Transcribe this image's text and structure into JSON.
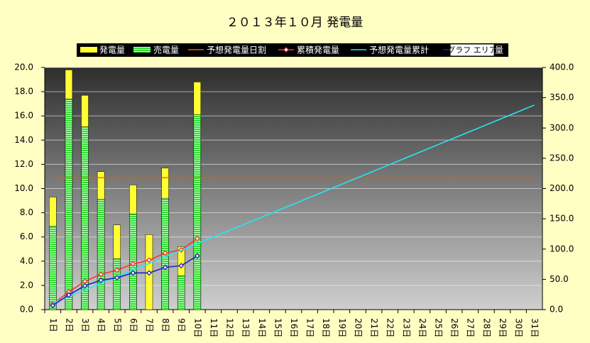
{
  "chart_data": {
    "type": "bar",
    "title": "２０１３年１０月 発電量",
    "categories": [
      "1日",
      "2日",
      "3日",
      "4日",
      "5日",
      "6日",
      "7日",
      "8日",
      "9日",
      "10日",
      "11日",
      "12日",
      "13日",
      "14日",
      "15日",
      "16日",
      "17日",
      "18日",
      "19日",
      "20日",
      "21日",
      "22日",
      "23日",
      "24日",
      "25日",
      "26日",
      "27日",
      "28日",
      "29日",
      "30日",
      "31日"
    ],
    "series": [
      {
        "name": "発電量",
        "type": "bar",
        "color": "#ffff33",
        "values": [
          9.3,
          19.8,
          17.7,
          11.4,
          7.0,
          10.3,
          6.2,
          11.7,
          5.2,
          18.8,
          null,
          null,
          null,
          null,
          null,
          null,
          null,
          null,
          null,
          null,
          null,
          null,
          null,
          null,
          null,
          null,
          null,
          null,
          null,
          null,
          null
        ]
      },
      {
        "name": "売電量",
        "type": "bar",
        "color": "#33dd33",
        "values": [
          6.9,
          17.4,
          15.1,
          9.1,
          4.2,
          7.9,
          0,
          9.2,
          2.8,
          16.1,
          null,
          null,
          null,
          null,
          null,
          null,
          null,
          null,
          null,
          null,
          null,
          null,
          null,
          null,
          null,
          null,
          null,
          null,
          null,
          null,
          null
        ]
      },
      {
        "name": "予想発電量日割",
        "type": "line",
        "color": "#e06000",
        "values": [
          10.9,
          10.9,
          10.9,
          10.9,
          10.9,
          10.9,
          10.9,
          10.9,
          10.9,
          10.9,
          10.9,
          10.9,
          10.9,
          10.9,
          10.9,
          10.9,
          10.9,
          10.9,
          10.9,
          10.9,
          10.9,
          10.9,
          10.9,
          10.9,
          10.9,
          10.9,
          10.9,
          10.9,
          10.9,
          10.9,
          10.9
        ]
      },
      {
        "name": "累積発電量",
        "type": "line",
        "marker": "diamond",
        "axis": "y2",
        "color": "#ff3030",
        "values": [
          9.3,
          29.1,
          46.8,
          58.2,
          65.2,
          75.5,
          81.7,
          93.4,
          98.6,
          117.4,
          null,
          null,
          null,
          null,
          null,
          null,
          null,
          null,
          null,
          null,
          null,
          null,
          null,
          null,
          null,
          null,
          null,
          null,
          null,
          null,
          null
        ]
      },
      {
        "name": "予想発電量累計",
        "type": "line",
        "axis": "y2",
        "color": "#22e8f0",
        "values": [
          10.9,
          21.8,
          32.7,
          43.6,
          54.5,
          65.4,
          76.3,
          87.2,
          98.1,
          109,
          119.9,
          130.8,
          141.7,
          152.6,
          163.5,
          174.4,
          185.3,
          196.2,
          207.1,
          218,
          228.9,
          239.8,
          250.7,
          261.6,
          272.5,
          283.4,
          294.3,
          305.2,
          316.1,
          327,
          337.9
        ]
      },
      {
        "name": "量",
        "type": "line",
        "marker": "diamond",
        "axis": "y2",
        "color": "#2020c0",
        "values": [
          6.9,
          24.3,
          39.4,
          48.5,
          52.7,
          60.6,
          60.6,
          69.8,
          72.6,
          88.7,
          null,
          null,
          null,
          null,
          null,
          null,
          null,
          null,
          null,
          null,
          null,
          null,
          null,
          null,
          null,
          null,
          null,
          null,
          null,
          null,
          null
        ]
      }
    ],
    "tooltip": "グラフ エリア",
    "ylim": [
      0,
      20
    ],
    "yticks": [
      {
        "value": 0,
        "label": "0.0"
      },
      {
        "value": 2,
        "label": "2.0"
      },
      {
        "value": 4,
        "label": "4.0"
      },
      {
        "value": 6,
        "label": "6.0"
      },
      {
        "value": 8,
        "label": "8.0"
      },
      {
        "value": 10,
        "label": "10.0"
      },
      {
        "value": 12,
        "label": "12.0"
      },
      {
        "value": 14,
        "label": "14.0"
      },
      {
        "value": 16,
        "label": "16.0"
      },
      {
        "value": 18,
        "label": "18.0"
      },
      {
        "value": 20,
        "label": "20.0"
      }
    ],
    "y2lim": [
      0,
      400
    ],
    "y2ticks": [
      {
        "value": 0,
        "label": "0.0"
      },
      {
        "value": 50,
        "label": "50.0"
      },
      {
        "value": 100,
        "label": "100.0"
      },
      {
        "value": 150,
        "label": "150.0"
      },
      {
        "value": 200,
        "label": "200.0"
      },
      {
        "value": 250,
        "label": "250.0"
      },
      {
        "value": 300,
        "label": "300.0"
      },
      {
        "value": 350,
        "label": "350.0"
      },
      {
        "value": 400,
        "label": "400.0"
      }
    ],
    "grid": true
  }
}
